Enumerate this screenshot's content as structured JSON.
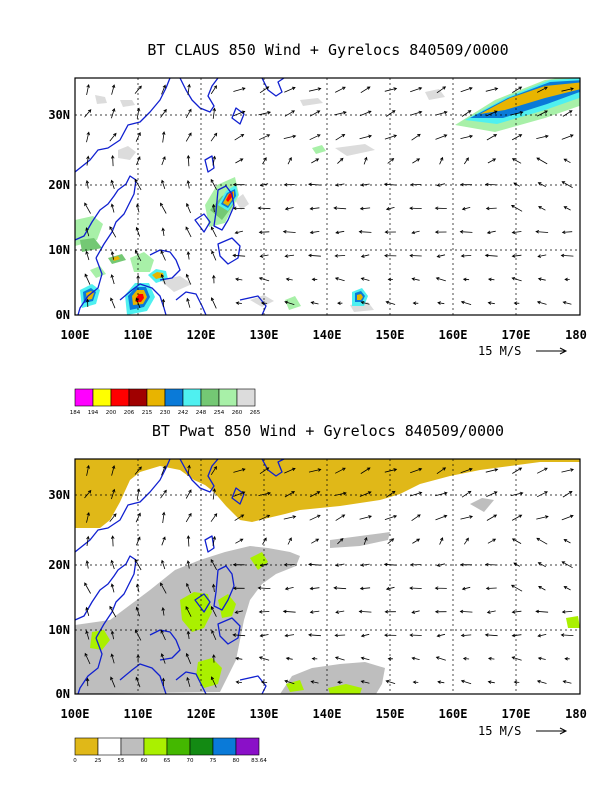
{
  "panel_top": {
    "title": "BT CLAUS 850 Wind + Gyrelocs 840509/0000",
    "y_labels": [
      "30N",
      "20N",
      "10N",
      "0N"
    ],
    "x_labels": [
      "100E",
      "110E",
      "120E",
      "130E",
      "140E",
      "150E",
      "160E",
      "170E",
      "180"
    ],
    "vector_scale_label": "15 M/S",
    "legend": {
      "colors": [
        "#ff00ff",
        "#ffff00",
        "#ff0000",
        "#a00000",
        "#e8b400",
        "#0a7ad8",
        "#4ff0f0",
        "#74c874",
        "#a8f0a8",
        "#dcdcdc"
      ],
      "labels": [
        "184",
        "194",
        "200",
        "206",
        "215",
        "230",
        "242",
        "248",
        "254",
        "260",
        "265"
      ]
    }
  },
  "panel_bottom": {
    "title": "BT Pwat 850 Wind + Gyrelocs 840509/0000",
    "y_labels": [
      "30N",
      "20N",
      "10N",
      "0N"
    ],
    "x_labels": [
      "100E",
      "110E",
      "120E",
      "130E",
      "140E",
      "150E",
      "160E",
      "170E",
      "180"
    ],
    "vector_scale_label": "15 M/S",
    "legend": {
      "colors": [
        "#e0b818",
        "#ffffff",
        "#bebebe",
        "#aaf000",
        "#44b800",
        "#138a13",
        "#0a7ad8",
        "#8a10c8"
      ],
      "labels": [
        "0",
        "25",
        "55",
        "60",
        "65",
        "70",
        "75",
        "80",
        "83.64"
      ]
    }
  },
  "colors": {
    "coastline": "#1020d0",
    "vectors": "#000000",
    "frame": "#000000"
  }
}
